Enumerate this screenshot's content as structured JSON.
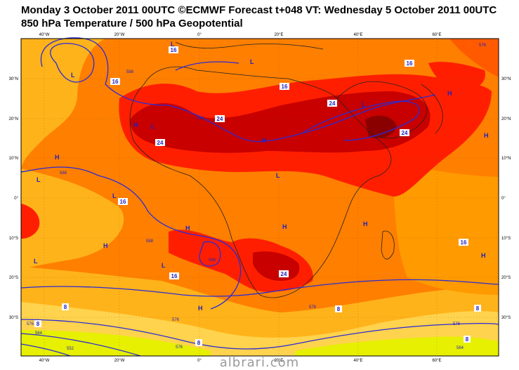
{
  "header": {
    "line1": "Monday 3 October 2011 00UTC ©ECMWF Forecast t+048 VT: Wednesday 5 October 2011 00UTC",
    "line2": "850 hPa Temperature / 500 hPa Geopotential"
  },
  "axes": {
    "top_lon": [
      "40°W",
      "20°W",
      "0°",
      "20°E",
      "40°E",
      "60°E"
    ],
    "bottom_lon": [
      "40°W",
      "20°W",
      "0°",
      "20°E",
      "40°E",
      "60°E"
    ],
    "left_lat": [
      "30°N",
      "20°N",
      "10°N",
      "0°",
      "10°S",
      "20°S",
      "30°S"
    ],
    "right_lat": [
      "30°N",
      "20°N",
      "10°N",
      "0°",
      "10°S",
      "20°S",
      "30°S"
    ]
  },
  "temperature_labels": [
    "16",
    "16",
    "16",
    "24",
    "24",
    "24",
    "24",
    "16",
    "16",
    "16",
    "24",
    "16",
    "8",
    "8",
    "8",
    "8",
    "8",
    "8"
  ],
  "geopotential_labels": [
    "588",
    "588",
    "588",
    "588",
    "588",
    "576",
    "576",
    "576",
    "576",
    "576",
    "564",
    "564",
    "552",
    "576"
  ],
  "pressure_centers": {
    "L": [
      "L",
      "L",
      "L",
      "L",
      "L",
      "L",
      "L",
      "L",
      "L",
      "L"
    ],
    "H": [
      "H",
      "H",
      "H",
      "H",
      "H",
      "H",
      "H",
      "H",
      "H",
      "H",
      "H"
    ]
  },
  "colors": {
    "pale_yellow": "#ffd34d",
    "light_orange": "#ffb31a",
    "orange": "#ff7f00",
    "dark_orange": "#ff5a00",
    "red": "#ff1f00",
    "dark_red": "#c80000",
    "lime": "#d4f000",
    "contour_blue": "#2b2bd6",
    "coast": "#222222"
  },
  "watermark": "albrari.com"
}
